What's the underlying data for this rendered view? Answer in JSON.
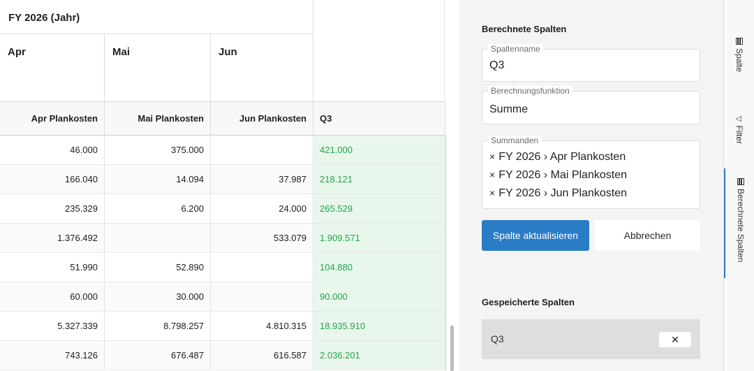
{
  "grid": {
    "group_header": "FY 2026 (Jahr)",
    "months": [
      "Apr",
      "Mai",
      "Jun"
    ],
    "columns": [
      "Apr Plankosten",
      "Mai Plankosten",
      "Jun Plankosten",
      "Q3"
    ],
    "rows": [
      [
        "46.000",
        "375.000",
        "",
        "421.000"
      ],
      [
        "166.040",
        "14.094",
        "37.987",
        "218.121"
      ],
      [
        "235.329",
        "6.200",
        "24.000",
        "265.529"
      ],
      [
        "1.376.492",
        "",
        "533.079",
        "1.909.571"
      ],
      [
        "51.990",
        "52.890",
        "",
        "104.880"
      ],
      [
        "60.000",
        "30.000",
        "",
        "90.000"
      ],
      [
        "5.327.339",
        "8.798.257",
        "4.810.315",
        "18.935.910"
      ],
      [
        "743.126",
        "676.487",
        "616.587",
        "2.036.201"
      ]
    ]
  },
  "panel": {
    "title": "Berechnete Spalten",
    "name_field": {
      "label": "Spaltenname",
      "value": "Q3"
    },
    "function_field": {
      "label": "Berechnungsfunktion",
      "value": "Summe"
    },
    "summands_field": {
      "label": "Summanden",
      "remove_glyph": "×",
      "items": [
        "FY 2026 › Apr Plankosten",
        "FY 2026 › Mai Plankosten",
        "FY 2026 › Jun Plankosten"
      ]
    },
    "update_button": "Spalte aktualisieren",
    "cancel_button": "Abbrechen",
    "saved_title": "Gespeicherte Spalten",
    "saved_items": [
      {
        "label": "Q3",
        "delete_glyph": "✕"
      }
    ]
  },
  "tabs": [
    {
      "label": "Spalte",
      "icon": "columns-icon"
    },
    {
      "label": "Filter",
      "icon": "filter-icon"
    },
    {
      "label": "Berechnete Spalten",
      "icon": "columns-icon",
      "active": true
    }
  ],
  "colors": {
    "accent": "#2b7cc7",
    "q3_text": "#21a649",
    "q3_bg": "#e9f6ec"
  }
}
